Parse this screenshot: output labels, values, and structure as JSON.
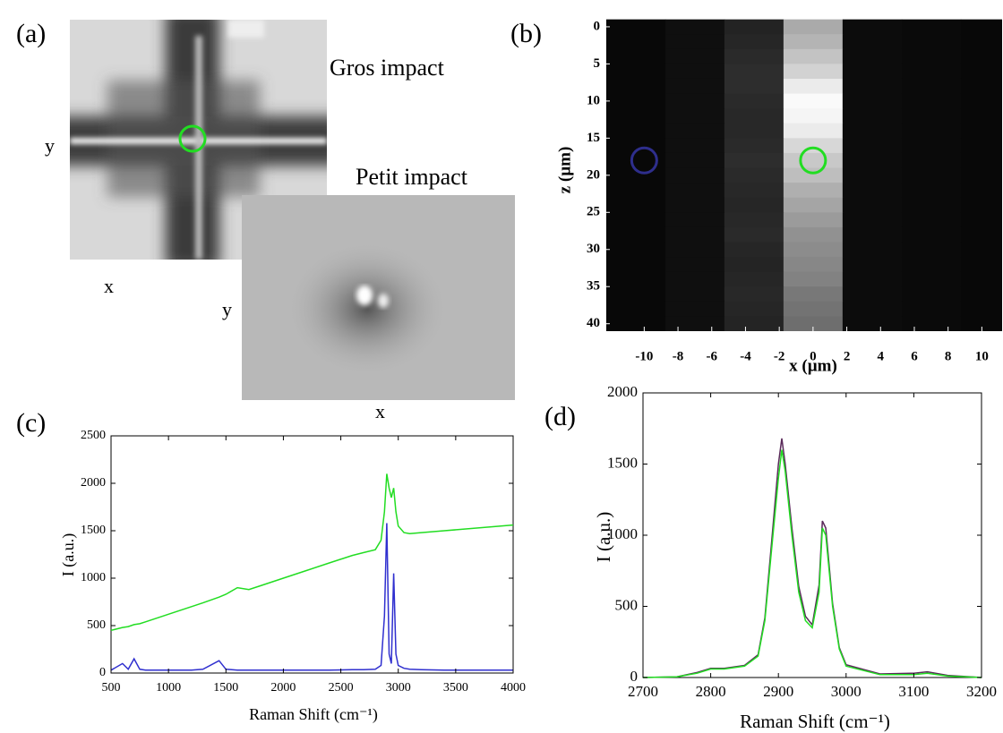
{
  "panel_a": {
    "label": "(a)",
    "big_title": "Gros impact",
    "small_title": "Petit impact",
    "big_y": "y",
    "big_x": "x",
    "small_y": "y",
    "small_x": "x"
  },
  "chart_data": [
    {
      "type": "heatmap",
      "label": "(b)",
      "x_label": "x (µm)",
      "y_label": "z (µm)",
      "x": [
        -10.5,
        -7,
        -3.5,
        0,
        3.5,
        7,
        10.5
      ],
      "y": [
        0,
        2,
        4,
        6,
        8,
        10,
        12,
        14,
        16,
        18,
        20,
        22,
        24,
        26,
        28,
        30,
        32,
        34,
        36,
        38,
        40
      ],
      "z": [
        [
          8,
          15,
          35,
          170,
          12,
          10,
          8
        ],
        [
          8,
          15,
          38,
          180,
          12,
          10,
          8
        ],
        [
          8,
          15,
          42,
          195,
          12,
          10,
          8
        ],
        [
          8,
          15,
          45,
          210,
          12,
          10,
          8
        ],
        [
          8,
          15,
          45,
          235,
          12,
          10,
          8
        ],
        [
          8,
          15,
          42,
          250,
          12,
          10,
          8
        ],
        [
          8,
          15,
          40,
          245,
          12,
          10,
          8
        ],
        [
          8,
          15,
          40,
          235,
          12,
          10,
          8
        ],
        [
          8,
          15,
          42,
          215,
          12,
          10,
          8
        ],
        [
          8,
          15,
          45,
          200,
          12,
          10,
          8
        ],
        [
          8,
          15,
          42,
          190,
          12,
          10,
          8
        ],
        [
          8,
          15,
          40,
          175,
          12,
          10,
          8
        ],
        [
          8,
          15,
          38,
          165,
          12,
          10,
          8
        ],
        [
          8,
          15,
          40,
          155,
          12,
          10,
          8
        ],
        [
          8,
          15,
          42,
          145,
          12,
          10,
          8
        ],
        [
          8,
          15,
          38,
          140,
          12,
          10,
          8
        ],
        [
          8,
          15,
          36,
          135,
          12,
          10,
          8
        ],
        [
          8,
          15,
          38,
          130,
          12,
          10,
          8
        ],
        [
          8,
          15,
          40,
          120,
          12,
          10,
          8
        ],
        [
          8,
          15,
          38,
          115,
          12,
          10,
          8
        ],
        [
          8,
          15,
          36,
          110,
          12,
          10,
          8
        ]
      ],
      "colormap": "gray",
      "vmin": 0,
      "vmax": 255,
      "xlim": [
        -12.3,
        11.2
      ],
      "ylim": [
        -1.8,
        41
      ],
      "y_inverted": true,
      "xticks": [
        -10,
        -8,
        -6,
        -4,
        -2,
        0,
        2,
        4,
        6,
        8,
        10
      ],
      "yticks": [
        0,
        5,
        10,
        15,
        20,
        25,
        30,
        35,
        40
      ],
      "markers": [
        {
          "x": -10,
          "y": 18,
          "color": "#2e2e8c"
        },
        {
          "x": 0,
          "y": 18,
          "color": "#22dd22"
        }
      ]
    },
    {
      "type": "line",
      "label": "(c)",
      "x_label": "Raman Shift (cm⁻¹)",
      "y_label": "I (a.u.)",
      "x": [
        500,
        600,
        650,
        700,
        750,
        800,
        1000,
        1200,
        1300,
        1440,
        1500,
        1600,
        1700,
        1800,
        2000,
        2200,
        2400,
        2600,
        2700,
        2800,
        2850,
        2880,
        2900,
        2920,
        2940,
        2960,
        2980,
        3000,
        3050,
        3100,
        3200,
        3400,
        3600,
        3800,
        4000
      ],
      "series": [
        {
          "color": "#22dd22",
          "values": [
            450,
            480,
            490,
            510,
            520,
            540,
            620,
            700,
            740,
            800,
            830,
            900,
            880,
            920,
            1000,
            1080,
            1160,
            1240,
            1270,
            1300,
            1400,
            1700,
            2100,
            1950,
            1850,
            1950,
            1700,
            1550,
            1480,
            1470,
            1480,
            1500,
            1520,
            1540,
            1560
          ]
        },
        {
          "color": "#2f2fcf",
          "values": [
            30,
            100,
            40,
            150,
            40,
            30,
            30,
            30,
            40,
            130,
            40,
            30,
            30,
            30,
            30,
            30,
            30,
            35,
            35,
            40,
            80,
            600,
            1580,
            200,
            100,
            1050,
            200,
            80,
            50,
            40,
            35,
            30,
            30,
            30,
            30
          ]
        }
      ],
      "xlim": [
        500,
        4000
      ],
      "ylim": [
        0,
        2500
      ],
      "xticks": [
        500,
        1000,
        1500,
        2000,
        2500,
        3000,
        3500,
        4000
      ],
      "yticks": [
        0,
        500,
        1000,
        1500,
        2000,
        2500
      ]
    },
    {
      "type": "line",
      "label": "(d)",
      "x_label": "Raman Shift (cm⁻¹)",
      "y_label": "I (a.u.)",
      "x": [
        2700,
        2750,
        2780,
        2800,
        2820,
        2850,
        2870,
        2880,
        2890,
        2900,
        2905,
        2910,
        2920,
        2930,
        2940,
        2950,
        2960,
        2965,
        2970,
        2980,
        2990,
        3000,
        3050,
        3100,
        3120,
        3150,
        3200
      ],
      "series": [
        {
          "color": "#5a2a5a",
          "values": [
            0,
            5,
            35,
            65,
            65,
            85,
            160,
            420,
            950,
            1500,
            1680,
            1500,
            1050,
            640,
            430,
            370,
            650,
            1100,
            1050,
            520,
            210,
            90,
            25,
            30,
            40,
            15,
            0
          ]
        },
        {
          "color": "#22dd22",
          "values": [
            0,
            5,
            30,
            60,
            60,
            80,
            150,
            400,
            900,
            1400,
            1600,
            1450,
            1000,
            600,
            400,
            350,
            600,
            1050,
            1000,
            500,
            200,
            80,
            20,
            20,
            30,
            10,
            0
          ]
        }
      ],
      "xlim": [
        2700,
        3200
      ],
      "ylim": [
        0,
        2000
      ],
      "xticks": [
        2700,
        2800,
        2900,
        3000,
        3100,
        3200
      ],
      "yticks": [
        0,
        500,
        1000,
        1500,
        2000
      ]
    }
  ]
}
